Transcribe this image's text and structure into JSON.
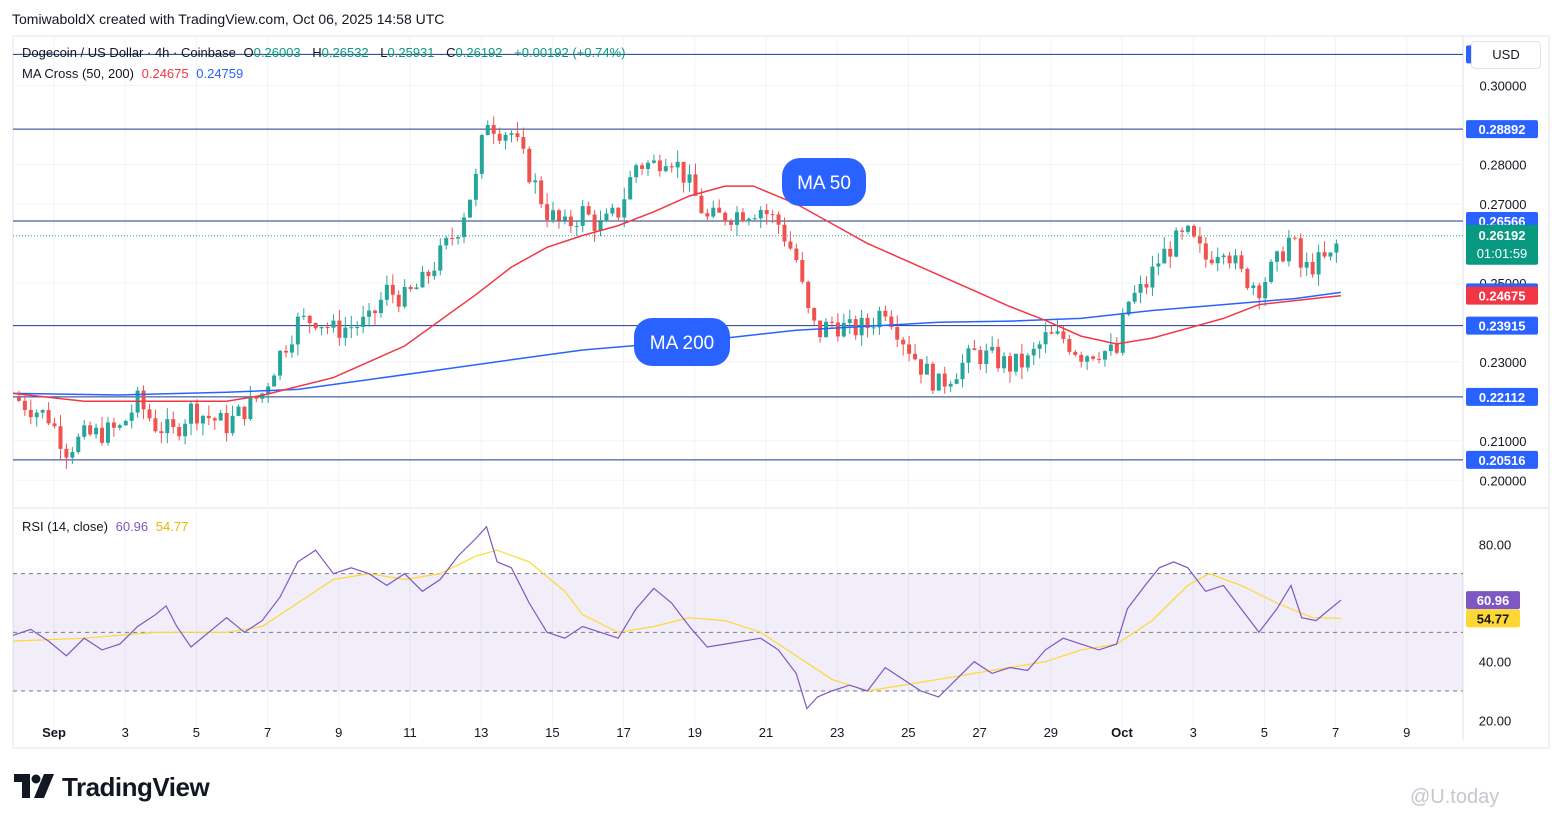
{
  "header": {
    "credit": "TomiwaboldX created with TradingView.com, Oct 06, 2025 14:58 UTC"
  },
  "legend": {
    "symbol": "Dogecoin / US Dollar · 4h · Coinbase",
    "o_label": "O",
    "o_value": "0.26003",
    "h_label": "H",
    "h_value": "0.26532",
    "l_label": "L",
    "l_value": "0.25931",
    "c_label": "C",
    "c_value": "0.26192",
    "change": "+0.00192 (+0.74%)",
    "ma_label": "MA Cross (50, 200)",
    "ma50_value": "0.24675",
    "ma200_value": "0.24759"
  },
  "currency_label": "USD",
  "rsi_legend": {
    "label": "RSI (14, close)",
    "rsi_value": "60.96",
    "ma_value": "54.77"
  },
  "footer": {
    "brand": "TradingView",
    "watermark": "@U.today"
  },
  "colors": {
    "up": "#26a69a",
    "down": "#ef5350",
    "ma50": "#f23645",
    "ma200": "#2962ff",
    "level": "#1e3a8a",
    "rsi": "#7e57c2",
    "rsi_ma": "#fdd835",
    "label_blue": "#2962ff"
  },
  "chart_data": [
    {
      "type": "candlestick",
      "interval": "4h",
      "y_axis": {
        "range": [
          0.195,
          0.311
        ],
        "ticks": [
          "0.30000",
          "0.28000",
          "0.27000",
          "0.25000",
          "0.23000",
          "0.21000",
          "0.20000"
        ]
      },
      "x_axis": {
        "ticks": [
          "Sep",
          "3",
          "5",
          "7",
          "9",
          "11",
          "13",
          "15",
          "17",
          "19",
          "21",
          "23",
          "25",
          "27",
          "29",
          "Oct",
          "3",
          "5",
          "7",
          "9"
        ]
      },
      "horizontal_levels": [
        "0.30787",
        "0.28892",
        "0.26566",
        "0.23915",
        "0.22112",
        "0.20516"
      ],
      "last_price": {
        "value": "0.26192",
        "countdown": "01:01:59"
      },
      "ma50_price_label": "0.24675",
      "ma200_price_label": "0.24759",
      "annotations": [
        "MA 50",
        "MA 200"
      ],
      "ohlc_guide": [
        [
          0.0,
          0.221
        ],
        [
          1.0,
          0.216
        ],
        [
          1.5,
          0.208
        ],
        [
          2.0,
          0.211
        ],
        [
          3.0,
          0.213
        ],
        [
          3.5,
          0.22
        ],
        [
          4.0,
          0.214
        ],
        [
          4.5,
          0.212
        ],
        [
          5.0,
          0.218
        ],
        [
          5.5,
          0.216
        ],
        [
          6.0,
          0.214
        ],
        [
          7.0,
          0.222
        ],
        [
          7.5,
          0.232
        ],
        [
          8.0,
          0.24
        ],
        [
          8.5,
          0.241
        ],
        [
          9.0,
          0.238
        ],
        [
          10.0,
          0.24
        ],
        [
          10.5,
          0.248
        ],
        [
          11.0,
          0.246
        ],
        [
          11.5,
          0.25
        ],
        [
          12.0,
          0.257
        ],
        [
          12.5,
          0.264
        ],
        [
          13.0,
          0.276
        ],
        [
          13.3,
          0.292
        ],
        [
          13.6,
          0.289
        ],
        [
          14.0,
          0.288
        ],
        [
          14.5,
          0.278
        ],
        [
          15.0,
          0.268
        ],
        [
          15.5,
          0.264
        ],
        [
          16.0,
          0.268
        ],
        [
          16.5,
          0.264
        ],
        [
          17.0,
          0.268
        ],
        [
          17.5,
          0.28
        ],
        [
          18.0,
          0.28
        ],
        [
          18.4,
          0.283
        ],
        [
          18.8,
          0.278
        ],
        [
          19.5,
          0.266
        ],
        [
          20.0,
          0.267
        ],
        [
          21.0,
          0.269
        ],
        [
          21.5,
          0.265
        ],
        [
          22.0,
          0.256
        ],
        [
          22.3,
          0.243
        ],
        [
          22.6,
          0.237
        ],
        [
          23.0,
          0.24
        ],
        [
          23.5,
          0.238
        ],
        [
          24.0,
          0.239
        ],
        [
          24.5,
          0.244
        ],
        [
          25.0,
          0.236
        ],
        [
          25.5,
          0.229
        ],
        [
          26.0,
          0.224
        ],
        [
          26.5,
          0.228
        ],
        [
          27.0,
          0.232
        ],
        [
          27.5,
          0.231
        ],
        [
          28.0,
          0.229
        ],
        [
          28.5,
          0.23
        ],
        [
          29.0,
          0.236
        ],
        [
          29.5,
          0.236
        ],
        [
          30.0,
          0.232
        ],
        [
          30.5,
          0.233
        ],
        [
          31.0,
          0.232
        ],
        [
          31.3,
          0.245
        ],
        [
          31.8,
          0.249
        ],
        [
          32.2,
          0.256
        ],
        [
          32.6,
          0.26
        ],
        [
          33.0,
          0.262
        ],
        [
          33.5,
          0.256
        ],
        [
          34.0,
          0.26
        ],
        [
          34.5,
          0.252
        ],
        [
          35.0,
          0.249
        ],
        [
          35.5,
          0.255
        ],
        [
          35.9,
          0.262
        ],
        [
          36.2,
          0.253
        ],
        [
          36.6,
          0.255
        ],
        [
          37.0,
          0.256
        ],
        [
          37.3,
          0.262
        ]
      ],
      "ma50_guide": [
        [
          0,
          0.222
        ],
        [
          2,
          0.22
        ],
        [
          4,
          0.22
        ],
        [
          6,
          0.22
        ],
        [
          7,
          0.2215
        ],
        [
          9,
          0.226
        ],
        [
          11,
          0.234
        ],
        [
          13,
          0.247
        ],
        [
          14,
          0.254
        ],
        [
          15,
          0.259
        ],
        [
          16,
          0.262
        ],
        [
          17,
          0.2645
        ],
        [
          18,
          0.268
        ],
        [
          19,
          0.272
        ],
        [
          20,
          0.2745
        ],
        [
          20.8,
          0.2745
        ],
        [
          22,
          0.27
        ],
        [
          23,
          0.265
        ],
        [
          24,
          0.26
        ],
        [
          25,
          0.256
        ],
        [
          26,
          0.252
        ],
        [
          27,
          0.248
        ],
        [
          28,
          0.244
        ],
        [
          29,
          0.2405
        ],
        [
          30,
          0.2365
        ],
        [
          31,
          0.2345
        ],
        [
          32,
          0.236
        ],
        [
          33,
          0.2385
        ],
        [
          34,
          0.241
        ],
        [
          35,
          0.2445
        ],
        [
          36,
          0.2455
        ],
        [
          37,
          0.2465
        ],
        [
          37.3,
          0.24675
        ]
      ],
      "ma200_guide": [
        [
          0,
          0.222
        ],
        [
          3,
          0.2216
        ],
        [
          6,
          0.2223
        ],
        [
          8,
          0.223
        ],
        [
          10,
          0.2255
        ],
        [
          12,
          0.228
        ],
        [
          14,
          0.2305
        ],
        [
          16,
          0.233
        ],
        [
          18,
          0.2345
        ],
        [
          20,
          0.236
        ],
        [
          22,
          0.238
        ],
        [
          24,
          0.239
        ],
        [
          26,
          0.24
        ],
        [
          28,
          0.2403
        ],
        [
          30,
          0.241
        ],
        [
          32,
          0.243
        ],
        [
          34,
          0.2445
        ],
        [
          36,
          0.246
        ],
        [
          37.3,
          0.24759
        ]
      ]
    },
    {
      "type": "line",
      "name": "RSI (14, close)",
      "y_axis": {
        "range": [
          15,
          90
        ],
        "ticks": [
          "80.00",
          "40.00",
          "20.00"
        ],
        "bands": [
          30,
          50,
          70
        ]
      },
      "last_values": {
        "rsi": "60.96",
        "rsi_ma": "54.77"
      },
      "rsi_guide": [
        [
          0,
          49
        ],
        [
          0.5,
          51
        ],
        [
          1,
          47
        ],
        [
          1.5,
          42
        ],
        [
          2,
          48
        ],
        [
          2.5,
          44
        ],
        [
          3,
          46
        ],
        [
          3.5,
          52
        ],
        [
          4,
          56
        ],
        [
          4.3,
          59
        ],
        [
          4.6,
          52
        ],
        [
          5,
          45
        ],
        [
          5.5,
          50
        ],
        [
          6,
          55
        ],
        [
          6.5,
          50
        ],
        [
          7,
          54
        ],
        [
          7.5,
          62
        ],
        [
          8,
          74
        ],
        [
          8.5,
          78
        ],
        [
          9,
          70
        ],
        [
          9.5,
          72
        ],
        [
          10,
          70
        ],
        [
          10.5,
          66
        ],
        [
          11,
          70
        ],
        [
          11.5,
          64
        ],
        [
          12,
          68
        ],
        [
          12.5,
          76
        ],
        [
          13,
          82
        ],
        [
          13.3,
          86
        ],
        [
          13.6,
          74
        ],
        [
          14,
          72
        ],
        [
          14.5,
          60
        ],
        [
          15,
          50
        ],
        [
          15.5,
          48
        ],
        [
          16,
          52
        ],
        [
          16.5,
          50
        ],
        [
          17,
          48
        ],
        [
          17.5,
          58
        ],
        [
          18,
          65
        ],
        [
          18.5,
          60
        ],
        [
          19,
          52
        ],
        [
          19.5,
          45
        ],
        [
          20,
          46
        ],
        [
          21,
          48
        ],
        [
          21.5,
          44
        ],
        [
          22,
          36
        ],
        [
          22.3,
          24
        ],
        [
          22.6,
          28
        ],
        [
          23,
          30
        ],
        [
          23.5,
          32
        ],
        [
          24,
          30
        ],
        [
          24.5,
          38
        ],
        [
          25,
          34
        ],
        [
          25.5,
          30
        ],
        [
          26,
          28
        ],
        [
          26.5,
          34
        ],
        [
          27,
          40
        ],
        [
          27.5,
          36
        ],
        [
          28,
          38
        ],
        [
          28.5,
          37
        ],
        [
          29,
          44
        ],
        [
          29.5,
          48
        ],
        [
          30,
          46
        ],
        [
          30.5,
          44
        ],
        [
          31,
          46
        ],
        [
          31.3,
          58
        ],
        [
          31.8,
          66
        ],
        [
          32.2,
          72
        ],
        [
          32.6,
          74
        ],
        [
          33,
          72
        ],
        [
          33.5,
          64
        ],
        [
          34,
          66
        ],
        [
          34.5,
          58
        ],
        [
          35,
          50
        ],
        [
          35.5,
          58
        ],
        [
          35.9,
          66
        ],
        [
          36.2,
          55
        ],
        [
          36.6,
          54
        ],
        [
          37,
          58
        ],
        [
          37.3,
          60.96
        ]
      ],
      "rsi_ma_guide": [
        [
          0,
          47
        ],
        [
          2,
          48
        ],
        [
          4,
          50
        ],
        [
          6,
          50
        ],
        [
          7,
          52
        ],
        [
          8,
          60
        ],
        [
          9,
          68
        ],
        [
          10,
          70
        ],
        [
          11,
          68
        ],
        [
          12,
          70
        ],
        [
          13,
          76
        ],
        [
          13.6,
          78
        ],
        [
          14.5,
          74
        ],
        [
          15.5,
          64
        ],
        [
          16,
          56
        ],
        [
          17,
          50
        ],
        [
          18,
          52
        ],
        [
          19,
          55
        ],
        [
          20,
          54
        ],
        [
          21,
          50
        ],
        [
          22,
          42
        ],
        [
          23,
          34
        ],
        [
          24,
          30
        ],
        [
          25,
          32
        ],
        [
          26,
          34
        ],
        [
          27,
          36
        ],
        [
          28,
          38
        ],
        [
          29,
          40
        ],
        [
          30,
          44
        ],
        [
          31,
          46
        ],
        [
          32,
          54
        ],
        [
          33,
          66
        ],
        [
          33.6,
          70
        ],
        [
          34.5,
          66
        ],
        [
          35.5,
          60
        ],
        [
          36.5,
          55
        ],
        [
          37.3,
          54.77
        ]
      ]
    }
  ]
}
